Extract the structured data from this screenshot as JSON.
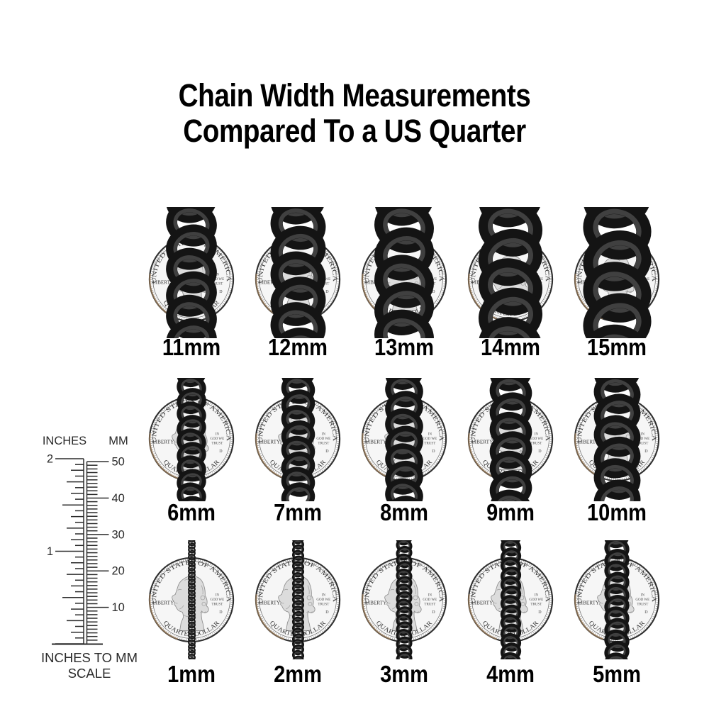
{
  "title": {
    "line1": "Chain Width Measurements",
    "line2": "Compared To a US Quarter"
  },
  "grid": {
    "rows": [
      {
        "labels": [
          "11mm",
          "12mm",
          "13mm",
          "14mm",
          "15mm"
        ],
        "mm": [
          11,
          12,
          13,
          14,
          15
        ]
      },
      {
        "labels": [
          "6mm",
          "7mm",
          "8mm",
          "9mm",
          "10mm"
        ],
        "mm": [
          6,
          7,
          8,
          9,
          10
        ]
      },
      {
        "labels": [
          "1mm",
          "2mm",
          "3mm",
          "4mm",
          "5mm"
        ],
        "mm": [
          1,
          2,
          3,
          4,
          5
        ]
      }
    ]
  },
  "coin": {
    "top_text": "UNITED STATES OF AMERICA",
    "bottom_text": "QUARTER DOLLAR",
    "left_text": "LIBERTY",
    "motto_line1": "IN",
    "motto_line2": "GOD WE",
    "motto_line3": "TRUST",
    "mint_mark": "D"
  },
  "ruler": {
    "left_header": "INCHES",
    "right_header": "MM",
    "inch_labels": [
      "2",
      "1"
    ],
    "mm_labels": [
      "50",
      "40",
      "30",
      "20",
      "10"
    ],
    "caption_line1": "INCHES TO MM",
    "caption_line2": "SCALE"
  },
  "colors": {
    "text": "#000000",
    "chain": "#141414",
    "chain_highlight": "#4f4f4f",
    "coin_field": "#f6f6f6",
    "coin_rim": "#2f2f2f",
    "copper_edge": "#c69c6d",
    "ruler_ink": "#2b2b2b"
  }
}
